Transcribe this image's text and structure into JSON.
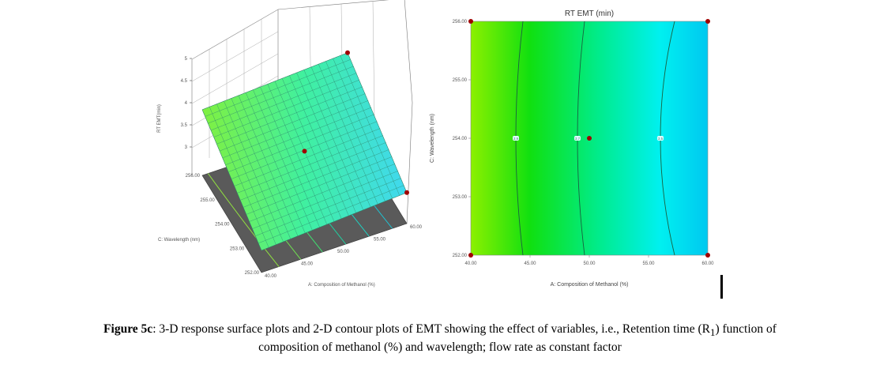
{
  "chart_data": [
    {
      "type": "surface3d",
      "title": "",
      "xlabel": "A: Composition of Methanol (%)",
      "ylabel": "C: Wavelength (nm)",
      "zlabel": "RT EMT(min)",
      "x_ticks": [
        "40.00",
        "45.00",
        "50.00",
        "55.00",
        "60.00"
      ],
      "y_ticks": [
        "252.00",
        "253.00",
        "254.00",
        "255.00",
        "256.00"
      ],
      "z_ticks": [
        "3",
        "3.5",
        "4",
        "4.5",
        "5"
      ],
      "xlim": [
        40,
        60
      ],
      "ylim": [
        252,
        256
      ],
      "zlim": [
        3,
        5
      ],
      "surface_corners": [
        {
          "x": 40,
          "y": 256,
          "z": 4.25
        },
        {
          "x": 60,
          "y": 256,
          "z": 4.45
        },
        {
          "x": 60,
          "y": 252,
          "z": 3.3
        },
        {
          "x": 40,
          "y": 252,
          "z": 3.1
        }
      ],
      "design_points": [
        {
          "x": 50,
          "y": 254,
          "z": 3.75
        },
        {
          "x": 60,
          "y": 256,
          "z": 4.45
        },
        {
          "x": 60,
          "y": 252,
          "z": 3.3
        }
      ]
    },
    {
      "type": "contour",
      "title": "RT EMT (min)",
      "xlabel": "A: Composition of Methanol (%)",
      "ylabel": "C: Wavelength (nm)",
      "x_ticks": [
        "40.00",
        "45.00",
        "50.00",
        "55.00",
        "60.00"
      ],
      "y_ticks": [
        "252.00",
        "253.00",
        "254.00",
        "255.00",
        "256.00"
      ],
      "xlim": [
        40,
        60
      ],
      "ylim": [
        252,
        256
      ],
      "contours": [
        {
          "label": "3.9",
          "x_at_mid": 43.8,
          "x_at_ends": 44.4
        },
        {
          "label": "3.7",
          "x_at_mid": 49.0,
          "x_at_ends": 49.6
        },
        {
          "label": "3.5",
          "x_at_mid": 56.0,
          "x_at_ends": 57.2
        }
      ],
      "design_points": [
        {
          "x": 40,
          "y": 256
        },
        {
          "x": 60,
          "y": 256
        },
        {
          "x": 40,
          "y": 252
        },
        {
          "x": 60,
          "y": 252
        },
        {
          "x": 50,
          "y": 254
        }
      ],
      "colors": {
        "low": "#00d0ff",
        "mid": "#00e040",
        "high": "#90f000"
      }
    }
  ],
  "caption": {
    "label": "Figure 5c",
    "text": ": 3-D response surface plots and 2-D contour plots of EMT showing the effect of variables, i.e., Retention time (R",
    "subscript": "1",
    "text2": ") function of",
    "line2": "composition of methanol (%) and wavelength; flow rate as constant factor"
  }
}
